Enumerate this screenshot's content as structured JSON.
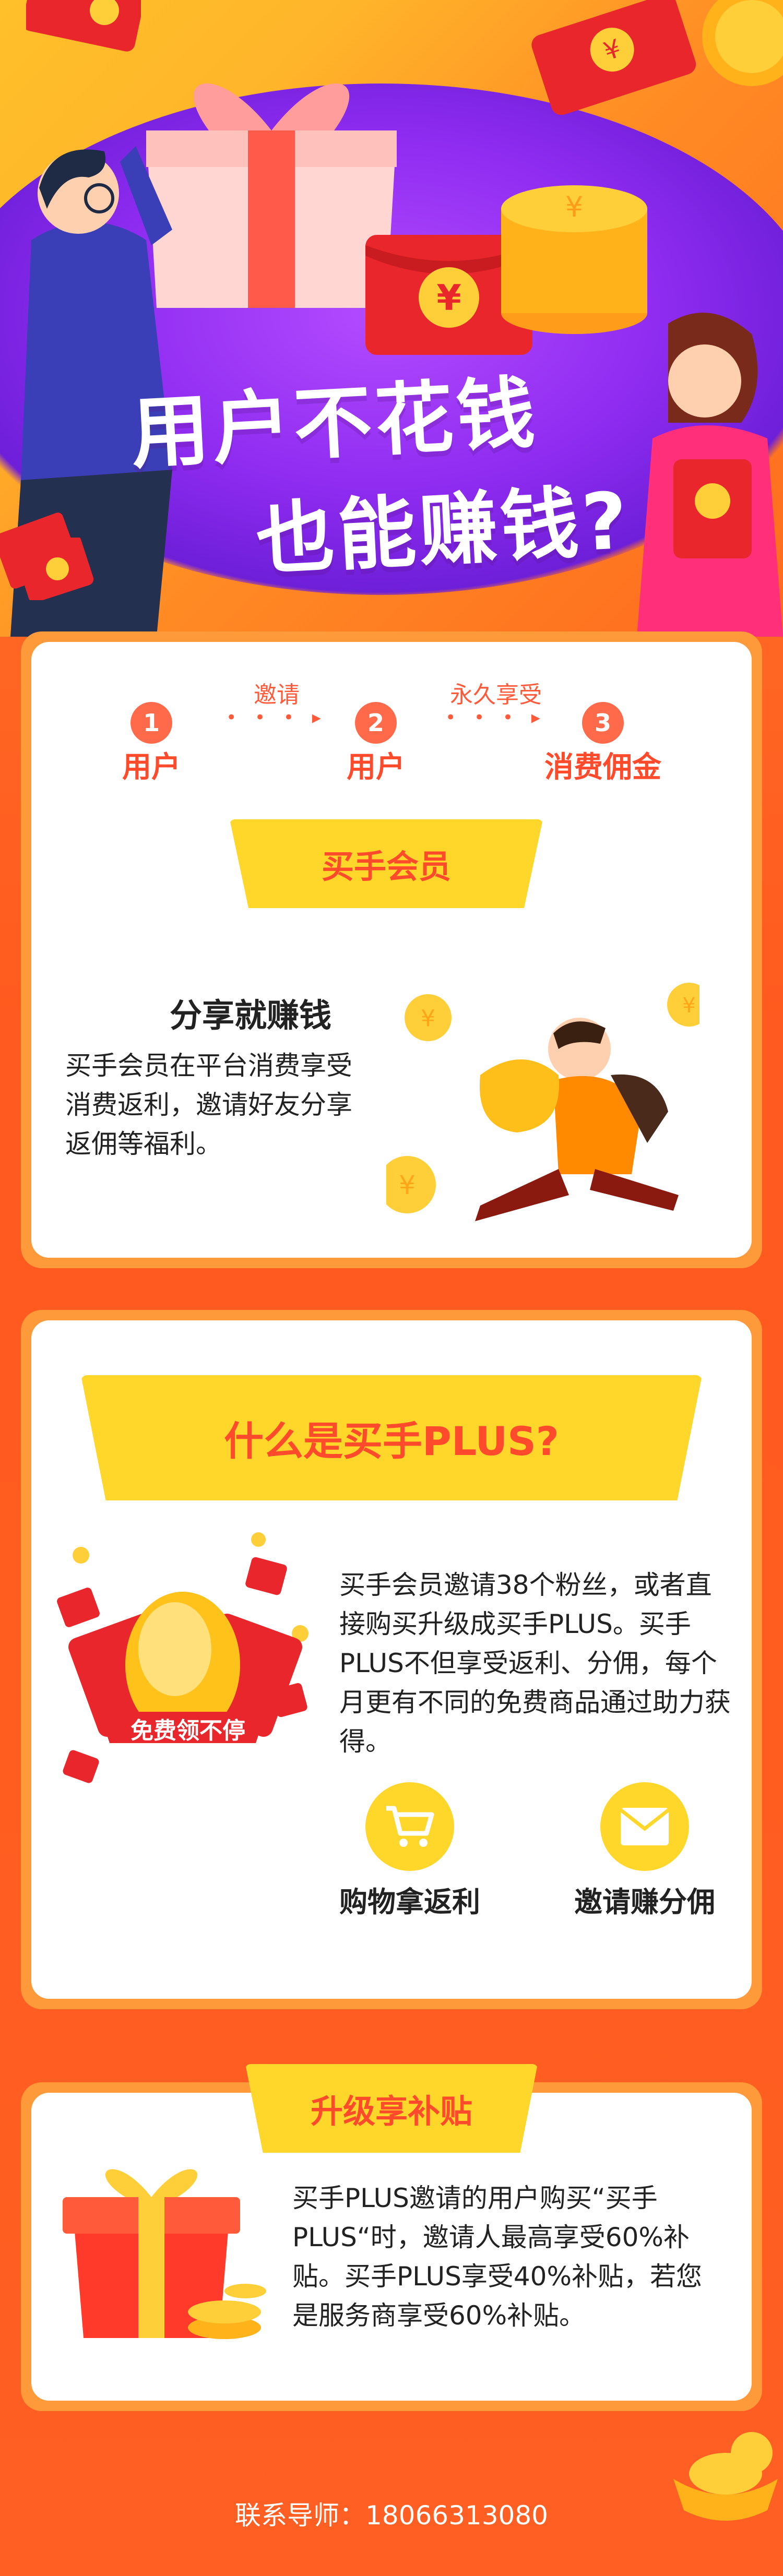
{
  "hero": {
    "title_line1": "用户不花钱",
    "title_line2": "也能赚钱?"
  },
  "flow": {
    "steps": [
      {
        "num": "1",
        "label": "用户"
      },
      {
        "num": "2",
        "label": "用户"
      },
      {
        "num": "3",
        "label": "消费佣金"
      }
    ],
    "arrows": [
      {
        "label": "邀请",
        "dots": "• • • ▸"
      },
      {
        "label": "永久享受",
        "dots": "• • • ▸"
      }
    ]
  },
  "buyer": {
    "banner": "买手会员",
    "heading": "分享就赚钱",
    "body": "买手会员在平台消费享受消费返利，邀请好友分享返佣等福利。"
  },
  "plus": {
    "banner": "什么是买手PLUS?",
    "egg_badge": "免费领不停",
    "body": "买手会员邀请38个粉丝，或者直接购买升级成买手PLUS。买手PLUS不但享受返利、分佣，每个月更有不同的免费商品通过助力获得。",
    "features": [
      {
        "icon": "shopping-cart-icon",
        "label": "购物拿返利"
      },
      {
        "icon": "envelope-icon",
        "label": "邀请赚分佣"
      }
    ]
  },
  "subsidy": {
    "banner": "升级享补贴",
    "body": "买手PLUS邀请的用户购买“买手PLUS“时，邀请人最高享受60%补贴。买手PLUS享受40%补贴，若您是服务商享受60%补贴。"
  },
  "footer": {
    "contact": "联系导师：18066313080"
  },
  "colors": {
    "accent_orange": "#ff5a1f",
    "accent_yellow": "#ffd62a",
    "accent_red": "#ff4b2b",
    "hero_purple": "#8e2bf0"
  }
}
